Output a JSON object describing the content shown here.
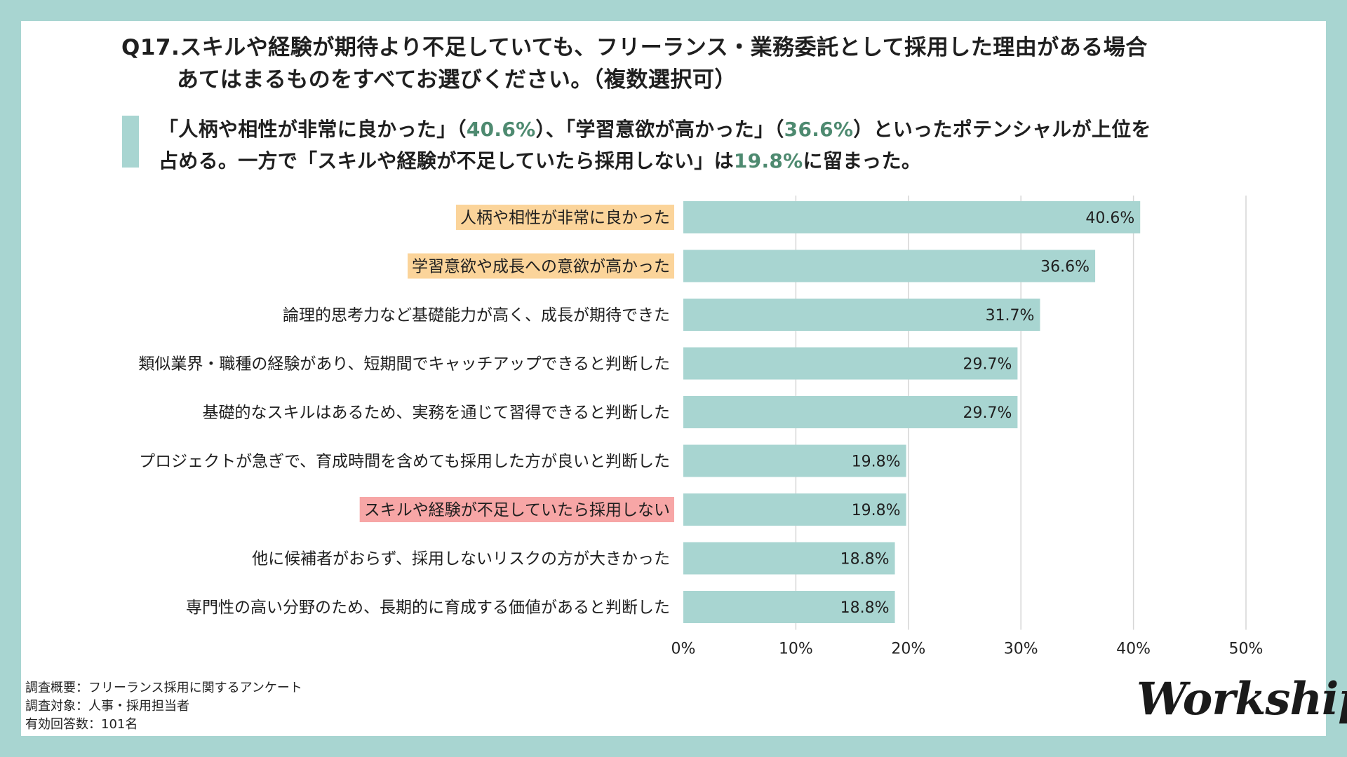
{
  "question": {
    "line1": "Q17.スキルや経験が期待より不足していても、フリーランス・業務委託として採用した理由がある場合",
    "line2": "あてはまるものをすべてお選びください。（複数選択可）"
  },
  "summary": {
    "line1_a": "「人柄や相性が非常に良かった」（",
    "line1_v1": "40.6%",
    "line1_b": "）、「学習意欲が高かった」（",
    "line1_v2": "36.6%",
    "line1_c": "）といったポテンシャルが上位を",
    "line2_a": "占める。一方で「スキルや経験が不足していたら採用しない」は",
    "line2_v": "19.8%",
    "line2_b": "に留まった。"
  },
  "colors": {
    "bar": "#a8d5d1",
    "highlight_orange": "#fbd49a",
    "highlight_red": "#f7a6a6",
    "grid": "#d6d6d6",
    "accent_text": "#4e8a70"
  },
  "chart_data": {
    "type": "bar",
    "orientation": "horizontal",
    "categories": [
      "人柄や相性が非常に良かった",
      "学習意欲や成長への意欲が高かった",
      "論理的思考力など基礎能力が高く、成長が期待できた",
      "類似業界・職種の経験があり、短期間でキャッチアップできると判断した",
      "基礎的なスキルはあるため、実務を通じて習得できると判断した",
      "プロジェクトが急ぎで、育成時間を含めても採用した方が良いと判断した",
      "スキルや経験が不足していたら採用しない",
      "他に候補者がおらず、採用しないリスクの方が大きかった",
      "専門性の高い分野のため、長期的に育成する価値があると判断した"
    ],
    "values": [
      40.6,
      36.6,
      31.7,
      29.7,
      29.7,
      19.8,
      19.8,
      18.8,
      18.8
    ],
    "value_labels": [
      "40.6%",
      "36.6%",
      "31.7%",
      "29.7%",
      "29.7%",
      "19.8%",
      "19.8%",
      "18.8%",
      "18.8%"
    ],
    "label_highlight": [
      "orange",
      "orange",
      "",
      "",
      "",
      "",
      "red",
      "",
      ""
    ],
    "xlim": [
      0,
      50
    ],
    "ticks": [
      0,
      10,
      20,
      30,
      40,
      50
    ],
    "tick_labels": [
      "0%",
      "10%",
      "20%",
      "30%",
      "40%",
      "50%"
    ],
    "grid": true,
    "title": "",
    "xlabel": "",
    "ylabel": ""
  },
  "footer": {
    "line1": "調査概要：フリーランス採用に関するアンケート",
    "line2": "調査対象：人事・採用担当者",
    "line3": "有効回答数：101名"
  },
  "logo": {
    "text": "Workship"
  }
}
